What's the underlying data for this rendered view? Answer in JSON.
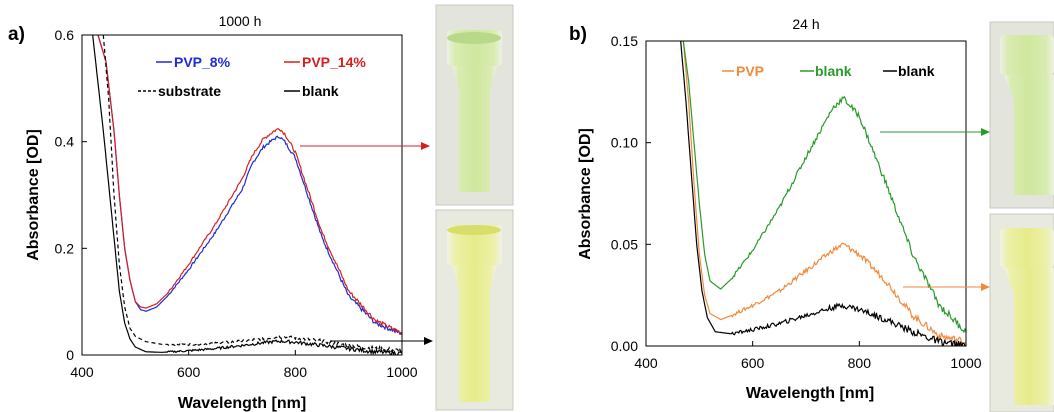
{
  "chart_data": [
    {
      "type": "line",
      "panel_label": "a)",
      "title": "1000 h",
      "xlabel": "Wavelength [nm]",
      "ylabel": "Absorbance [OD]",
      "xlim": [
        400,
        1000
      ],
      "ylim": [
        0,
        0.6
      ],
      "x_ticks": [
        400,
        600,
        800,
        1000
      ],
      "y_ticks": [
        0,
        0.2,
        0.4,
        0.6
      ],
      "x_tick_labels": [
        "400",
        "600",
        "800",
        "1000"
      ],
      "y_tick_labels": [
        "0",
        "0.2",
        "0.4",
        "0.6"
      ],
      "grid": false,
      "legend_position": "top",
      "series": [
        {
          "name": "PVP_8%",
          "color": "#1f2bd6",
          "style": "solid",
          "x": [
            430,
            445,
            460,
            470,
            480,
            490,
            500,
            510,
            520,
            540,
            560,
            600,
            650,
            700,
            720,
            740,
            760,
            770,
            780,
            800,
            820,
            850,
            900,
            950,
            1000
          ],
          "y": [
            0.6,
            0.55,
            0.42,
            0.3,
            0.2,
            0.14,
            0.1,
            0.085,
            0.082,
            0.09,
            0.11,
            0.16,
            0.23,
            0.31,
            0.36,
            0.39,
            0.405,
            0.41,
            0.4,
            0.37,
            0.31,
            0.22,
            0.11,
            0.06,
            0.04
          ]
        },
        {
          "name": "PVP_14%",
          "color": "#d62020",
          "style": "solid",
          "x": [
            430,
            445,
            460,
            470,
            480,
            490,
            500,
            510,
            520,
            540,
            560,
            600,
            650,
            700,
            720,
            740,
            760,
            770,
            780,
            800,
            820,
            850,
            900,
            950,
            1000
          ],
          "y": [
            0.6,
            0.55,
            0.42,
            0.3,
            0.2,
            0.14,
            0.1,
            0.09,
            0.088,
            0.096,
            0.115,
            0.17,
            0.245,
            0.33,
            0.375,
            0.405,
            0.42,
            0.425,
            0.415,
            0.38,
            0.32,
            0.23,
            0.12,
            0.065,
            0.04
          ]
        },
        {
          "name": "substrate",
          "color": "#000000",
          "style": "dashed",
          "x": [
            440,
            450,
            460,
            470,
            480,
            490,
            500,
            520,
            550,
            600,
            650,
            700,
            750,
            770,
            800,
            850,
            900,
            950,
            1000
          ],
          "y": [
            0.6,
            0.48,
            0.3,
            0.17,
            0.09,
            0.05,
            0.035,
            0.025,
            0.02,
            0.02,
            0.022,
            0.026,
            0.032,
            0.034,
            0.032,
            0.026,
            0.018,
            0.012,
            0.008
          ]
        },
        {
          "name": "blank",
          "color": "#000000",
          "style": "solid",
          "x": [
            420,
            440,
            460,
            470,
            480,
            490,
            500,
            520,
            550,
            600,
            650,
            700,
            750,
            770,
            800,
            850,
            900,
            950,
            1000
          ],
          "y": [
            0.6,
            0.42,
            0.22,
            0.12,
            0.06,
            0.03,
            0.015,
            0.006,
            0.005,
            0.008,
            0.012,
            0.018,
            0.024,
            0.026,
            0.024,
            0.018,
            0.012,
            0.006,
            0.003
          ]
        }
      ]
    },
    {
      "type": "line",
      "panel_label": "b)",
      "title": "24 h",
      "xlabel": "Wavelength [nm]",
      "ylabel": "Absorbance [OD]",
      "xlim": [
        400,
        1000
      ],
      "ylim": [
        0,
        0.15
      ],
      "x_ticks": [
        400,
        600,
        800,
        1000
      ],
      "y_ticks": [
        0,
        0.05,
        0.1,
        0.15
      ],
      "x_tick_labels": [
        "400",
        "600",
        "800",
        "1000"
      ],
      "y_tick_labels": [
        "0.00",
        "0.05",
        "0.10",
        "0.15"
      ],
      "grid": false,
      "legend_position": "top",
      "series": [
        {
          "name": "PVP",
          "color": "#f08a3c",
          "style": "solid",
          "x": [
            470,
            480,
            490,
            500,
            510,
            520,
            540,
            560,
            600,
            650,
            700,
            750,
            770,
            800,
            850,
            900,
            950,
            1000
          ],
          "y": [
            0.15,
            0.12,
            0.08,
            0.045,
            0.025,
            0.016,
            0.013,
            0.015,
            0.02,
            0.027,
            0.037,
            0.047,
            0.05,
            0.045,
            0.032,
            0.015,
            0.005,
            0.002
          ]
        },
        {
          "name": "blank",
          "color": "#2a9a2a",
          "style": "solid",
          "x": [
            470,
            480,
            490,
            500,
            510,
            520,
            540,
            560,
            600,
            650,
            700,
            750,
            770,
            800,
            850,
            900,
            950,
            1000
          ],
          "y": [
            0.15,
            0.13,
            0.1,
            0.07,
            0.045,
            0.032,
            0.028,
            0.033,
            0.047,
            0.068,
            0.093,
            0.117,
            0.122,
            0.113,
            0.08,
            0.045,
            0.02,
            0.007
          ]
        },
        {
          "name": "blank",
          "color": "#000000",
          "style": "solid",
          "x": [
            465,
            475,
            485,
            495,
            505,
            515,
            530,
            560,
            600,
            650,
            700,
            750,
            770,
            800,
            850,
            900,
            950,
            1000
          ],
          "y": [
            0.15,
            0.12,
            0.085,
            0.05,
            0.027,
            0.014,
            0.007,
            0.006,
            0.008,
            0.011,
            0.015,
            0.019,
            0.02,
            0.018,
            0.013,
            0.007,
            0.002,
            0.0
          ]
        }
      ]
    }
  ]
}
